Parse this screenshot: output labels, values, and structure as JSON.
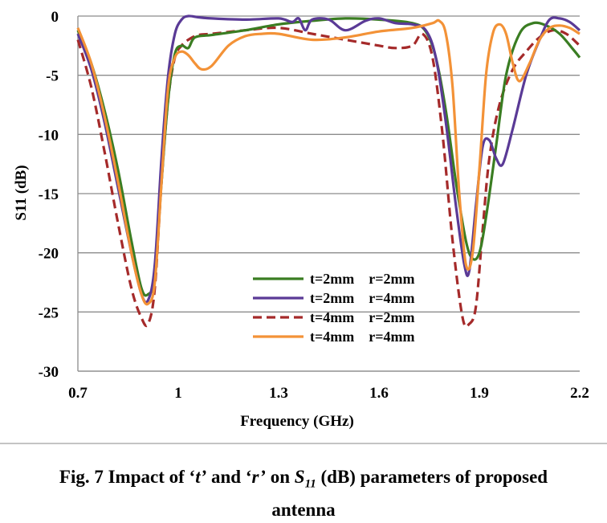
{
  "chart_data": {
    "type": "line",
    "xlabel": "Frequency (GHz)",
    "ylabel": "S11 (dB)",
    "xlim": [
      0.7,
      2.2
    ],
    "ylim": [
      -30,
      0
    ],
    "xticks": [
      "0.7",
      "1",
      "1.3",
      "1.6",
      "1.9",
      "2.2"
    ],
    "xtick_values": [
      0.7,
      1.0,
      1.3,
      1.6,
      1.9,
      2.2
    ],
    "yticks": [
      "0",
      "-5",
      "-10",
      "-15",
      "-20",
      "-25",
      "-30"
    ],
    "ytick_values": [
      0,
      -5,
      -10,
      -15,
      -20,
      -25,
      -30
    ],
    "grid": "horizontal",
    "legend_position": "bottom-center",
    "series": [
      {
        "name": "t=2mm    r=2mm",
        "color": "#3a7d22",
        "dash": "solid",
        "x": [
          0.7,
          0.74,
          0.78,
          0.82,
          0.86,
          0.89,
          0.91,
          0.93,
          0.95,
          0.97,
          0.99,
          1.01,
          1.03,
          1.05,
          1.1,
          1.2,
          1.3,
          1.4,
          1.5,
          1.6,
          1.7,
          1.74,
          1.77,
          1.8,
          1.83,
          1.86,
          1.88,
          1.9,
          1.92,
          1.95,
          1.98,
          2.02,
          2.06,
          2.1,
          2.14,
          2.18,
          2.2
        ],
        "y": [
          -1.2,
          -4.0,
          -8.0,
          -13.0,
          -19.0,
          -23.0,
          -23.5,
          -22.0,
          -14.0,
          -7.0,
          -3.2,
          -2.5,
          -2.7,
          -1.8,
          -1.6,
          -1.2,
          -0.7,
          -0.4,
          -0.2,
          -0.3,
          -0.6,
          -1.3,
          -3.5,
          -8.0,
          -14.0,
          -19.0,
          -20.5,
          -20.0,
          -17.0,
          -11.0,
          -5.0,
          -1.5,
          -0.6,
          -0.8,
          -1.5,
          -2.8,
          -3.5
        ]
      },
      {
        "name": "t=2mm    r=4mm",
        "color": "#5a3a96",
        "dash": "solid",
        "x": [
          0.7,
          0.74,
          0.78,
          0.82,
          0.86,
          0.89,
          0.91,
          0.93,
          0.95,
          0.97,
          0.99,
          1.01,
          1.03,
          1.06,
          1.1,
          1.2,
          1.3,
          1.34,
          1.36,
          1.38,
          1.4,
          1.45,
          1.5,
          1.56,
          1.6,
          1.65,
          1.7,
          1.74,
          1.77,
          1.8,
          1.83,
          1.855,
          1.87,
          1.89,
          1.91,
          1.93,
          1.95,
          1.97,
          2.0,
          2.04,
          2.08,
          2.11,
          2.14,
          2.17,
          2.2
        ],
        "y": [
          -1.5,
          -4.5,
          -9.0,
          -14.5,
          -20.0,
          -23.5,
          -24.0,
          -21.0,
          -12.0,
          -5.0,
          -1.5,
          -0.3,
          0.0,
          -0.1,
          -0.2,
          -0.3,
          -0.2,
          -0.5,
          -0.2,
          -1.2,
          -0.3,
          -0.3,
          -1.2,
          -0.4,
          -0.2,
          -0.6,
          -0.7,
          -1.2,
          -3.5,
          -9.0,
          -16.0,
          -21.0,
          -21.5,
          -16.0,
          -11.0,
          -10.5,
          -12.0,
          -12.5,
          -9.5,
          -5.0,
          -2.0,
          -0.3,
          -0.2,
          -0.5,
          -1.2
        ]
      },
      {
        "name": "t=4mm    r=2mm",
        "color": "#a52a2a",
        "dash": "dashed",
        "x": [
          0.7,
          0.74,
          0.78,
          0.82,
          0.86,
          0.89,
          0.91,
          0.93,
          0.95,
          0.97,
          0.99,
          1.01,
          1.03,
          1.06,
          1.1,
          1.2,
          1.3,
          1.4,
          1.5,
          1.6,
          1.65,
          1.7,
          1.73,
          1.76,
          1.79,
          1.82,
          1.85,
          1.87,
          1.89,
          1.91,
          1.93,
          1.96,
          2.0,
          2.04,
          2.08,
          2.12,
          2.16,
          2.2
        ],
        "y": [
          -2.0,
          -6.0,
          -11.5,
          -17.5,
          -23.0,
          -25.5,
          -26.0,
          -23.0,
          -14.0,
          -7.0,
          -3.5,
          -2.5,
          -2.0,
          -1.6,
          -1.5,
          -1.2,
          -1.0,
          -1.5,
          -2.0,
          -2.5,
          -2.7,
          -2.5,
          -1.5,
          -3.5,
          -10.0,
          -19.0,
          -25.5,
          -26.0,
          -24.5,
          -18.0,
          -12.0,
          -7.5,
          -4.5,
          -3.0,
          -1.8,
          -1.2,
          -1.5,
          -2.5
        ]
      },
      {
        "name": "t=4mm    r=4mm",
        "color": "#f39237",
        "dash": "solid",
        "x": [
          0.7,
          0.74,
          0.78,
          0.82,
          0.86,
          0.89,
          0.91,
          0.93,
          0.95,
          0.97,
          0.99,
          1.01,
          1.03,
          1.05,
          1.07,
          1.1,
          1.15,
          1.2,
          1.25,
          1.3,
          1.4,
          1.5,
          1.6,
          1.7,
          1.76,
          1.78,
          1.8,
          1.82,
          1.84,
          1.86,
          1.88,
          1.9,
          1.92,
          1.94,
          1.96,
          1.98,
          2.0,
          2.02,
          2.05,
          2.08,
          2.11,
          2.14,
          2.17,
          2.2
        ],
        "y": [
          -1.0,
          -4.0,
          -8.5,
          -14.0,
          -20.0,
          -23.5,
          -24.3,
          -22.5,
          -14.0,
          -6.0,
          -3.5,
          -3.0,
          -3.3,
          -4.0,
          -4.5,
          -4.2,
          -2.5,
          -1.7,
          -1.5,
          -1.5,
          -2.0,
          -1.8,
          -1.3,
          -1.0,
          -0.6,
          -0.4,
          -1.5,
          -6.0,
          -15.0,
          -21.0,
          -20.0,
          -13.0,
          -5.0,
          -1.5,
          -0.7,
          -1.5,
          -4.0,
          -5.5,
          -4.0,
          -2.0,
          -1.0,
          -0.8,
          -1.0,
          -1.5
        ]
      }
    ]
  },
  "caption": {
    "line1_a": "Fig. 7 Impact of ‘",
    "t": "t’",
    "line1_b": " and ‘",
    "r": "r’",
    "line1_c": " on ",
    "s_symbol": "S",
    "s_sub": "11",
    "line1_d": " (dB) parameters of proposed",
    "line2": "antenna"
  }
}
